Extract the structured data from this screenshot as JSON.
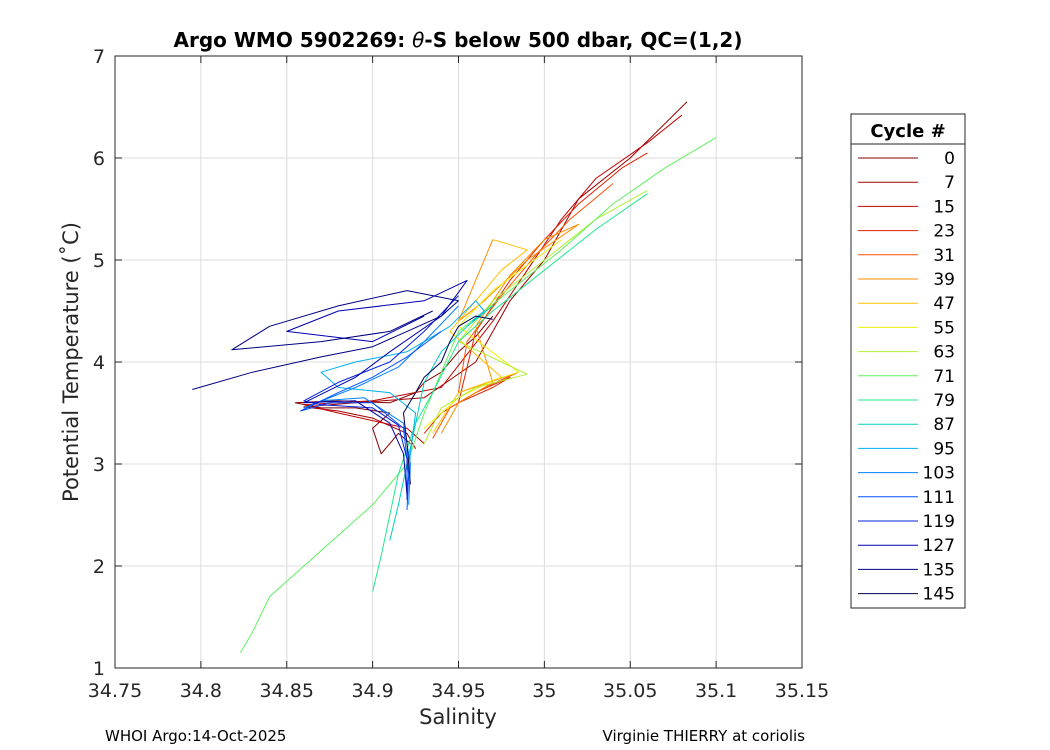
{
  "chart_data": {
    "type": "line",
    "title_prefix": "Argo WMO 5902269: ",
    "title_symbol": "θ",
    "title_suffix": "-S below 500 dbar,  QC=(1,2)",
    "xlabel": "Salinity",
    "ylabel": "Potential Temperature (˚C)",
    "xlim": [
      34.75,
      35.15
    ],
    "ylim": [
      1,
      7
    ],
    "xticks": [
      34.75,
      34.8,
      34.85,
      34.9,
      34.95,
      35,
      35.05,
      35.1,
      35.15
    ],
    "xtick_labels": [
      "34.75",
      "34.8",
      "34.85",
      "34.9",
      "34.95",
      "35",
      "35.05",
      "35.1",
      "35.15"
    ],
    "yticks": [
      1,
      2,
      3,
      4,
      5,
      6,
      7
    ],
    "ytick_labels": [
      "1",
      "2",
      "3",
      "4",
      "5",
      "6",
      "7"
    ],
    "grid": true,
    "legend": {
      "title": "Cycle #",
      "placement": "outside-right",
      "entries": [
        {
          "label": "0",
          "color": "#800000"
        },
        {
          "label": "7",
          "color": "#a00000"
        },
        {
          "label": "15",
          "color": "#c00000"
        },
        {
          "label": "23",
          "color": "#e02000"
        },
        {
          "label": "31",
          "color": "#ff5000"
        },
        {
          "label": "39",
          "color": "#ff8c00"
        },
        {
          "label": "47",
          "color": "#ffc000"
        },
        {
          "label": "55",
          "color": "#f0f000"
        },
        {
          "label": "63",
          "color": "#b0f030"
        },
        {
          "label": "71",
          "color": "#60f060"
        },
        {
          "label": "79",
          "color": "#20e890"
        },
        {
          "label": "87",
          "color": "#00d0c0"
        },
        {
          "label": "95",
          "color": "#00b0f0"
        },
        {
          "label": "103",
          "color": "#0080ff"
        },
        {
          "label": "111",
          "color": "#0050ff"
        },
        {
          "label": "119",
          "color": "#0020e0"
        },
        {
          "label": "127",
          "color": "#0000b0"
        },
        {
          "label": "135",
          "color": "#000080"
        },
        {
          "label": "145",
          "color": "#000050"
        }
      ]
    },
    "series": [
      {
        "color": "#800000",
        "points": [
          [
            34.922,
            3.2
          ],
          [
            34.915,
            3.3
          ],
          [
            34.905,
            3.1
          ],
          [
            34.9,
            3.35
          ],
          [
            34.91,
            3.5
          ],
          [
            34.89,
            3.55
          ],
          [
            34.87,
            3.55
          ],
          [
            34.855,
            3.6
          ],
          [
            34.88,
            3.62
          ],
          [
            34.91,
            3.6
          ],
          [
            34.925,
            3.7
          ],
          [
            34.93,
            3.8
          ],
          [
            34.94,
            3.9
          ],
          [
            34.95,
            4.1
          ],
          [
            34.96,
            4.25
          ],
          [
            34.97,
            4.45
          ]
        ]
      },
      {
        "color": "#a00000",
        "points": [
          [
            34.925,
            3.15
          ],
          [
            34.92,
            3.3
          ],
          [
            34.9,
            3.45
          ],
          [
            34.88,
            3.52
          ],
          [
            34.86,
            3.56
          ],
          [
            34.89,
            3.6
          ],
          [
            34.93,
            3.65
          ],
          [
            34.96,
            4.0
          ],
          [
            34.98,
            4.6
          ],
          [
            35.0,
            5.0
          ],
          [
            35.02,
            5.6
          ],
          [
            35.05,
            6.0
          ],
          [
            35.083,
            6.55
          ]
        ]
      },
      {
        "color": "#c00000",
        "points": [
          [
            34.93,
            3.2
          ],
          [
            34.92,
            3.35
          ],
          [
            34.88,
            3.5
          ],
          [
            34.86,
            3.58
          ],
          [
            34.9,
            3.62
          ],
          [
            34.94,
            3.75
          ],
          [
            34.97,
            4.4
          ],
          [
            34.99,
            4.9
          ],
          [
            35.01,
            5.4
          ],
          [
            35.03,
            5.8
          ],
          [
            35.06,
            6.15
          ],
          [
            35.08,
            6.42
          ]
        ]
      },
      {
        "color": "#e02000",
        "points": [
          [
            34.93,
            3.3
          ],
          [
            34.94,
            3.5
          ],
          [
            34.96,
            3.7
          ],
          [
            34.98,
            3.85
          ],
          [
            34.97,
            3.75
          ],
          [
            34.95,
            3.6
          ],
          [
            34.96,
            4.3
          ],
          [
            34.98,
            4.8
          ],
          [
            35.0,
            5.2
          ],
          [
            35.02,
            5.55
          ],
          [
            35.045,
            5.9
          ],
          [
            35.06,
            6.05
          ]
        ]
      },
      {
        "color": "#ff5000",
        "points": [
          [
            34.935,
            3.25
          ],
          [
            34.945,
            3.55
          ],
          [
            34.965,
            3.75
          ],
          [
            34.985,
            3.9
          ],
          [
            34.95,
            3.7
          ],
          [
            34.955,
            4.2
          ],
          [
            34.975,
            4.65
          ],
          [
            34.995,
            5.05
          ],
          [
            35.015,
            5.4
          ],
          [
            35.04,
            5.75
          ]
        ]
      },
      {
        "color": "#ff8c00",
        "points": [
          [
            34.94,
            3.3
          ],
          [
            34.95,
            3.6
          ],
          [
            34.97,
            3.8
          ],
          [
            34.96,
            4.35
          ],
          [
            34.98,
            4.85
          ],
          [
            35.0,
            5.2
          ],
          [
            35.02,
            5.35
          ],
          [
            34.99,
            5.0
          ],
          [
            34.965,
            4.6
          ],
          [
            34.95,
            4.4
          ],
          [
            34.97,
            5.2
          ]
        ]
      },
      {
        "color": "#ffc000",
        "points": [
          [
            34.935,
            3.3
          ],
          [
            34.95,
            3.7
          ],
          [
            34.975,
            3.85
          ],
          [
            34.945,
            4.3
          ],
          [
            34.96,
            4.6
          ],
          [
            34.975,
            4.9
          ],
          [
            34.99,
            5.1
          ],
          [
            34.97,
            5.2
          ]
        ]
      },
      {
        "color": "#f0f000",
        "points": [
          [
            34.93,
            3.35
          ],
          [
            34.95,
            3.65
          ],
          [
            34.97,
            3.82
          ],
          [
            34.985,
            3.9
          ],
          [
            34.95,
            4.35
          ],
          [
            34.97,
            4.7
          ],
          [
            34.99,
            4.95
          ],
          [
            35.01,
            5.2
          ]
        ]
      },
      {
        "color": "#b0f030",
        "points": [
          [
            34.93,
            3.2
          ],
          [
            34.94,
            3.55
          ],
          [
            34.96,
            3.75
          ],
          [
            34.99,
            3.88
          ],
          [
            34.95,
            4.2
          ],
          [
            34.97,
            4.6
          ],
          [
            35.0,
            5.0
          ],
          [
            35.03,
            5.4
          ],
          [
            35.06,
            5.68
          ]
        ]
      },
      {
        "color": "#60f060",
        "points": [
          [
            34.823,
            1.15
          ],
          [
            34.83,
            1.35
          ],
          [
            34.84,
            1.7
          ],
          [
            34.86,
            2.0
          ],
          [
            34.88,
            2.3
          ],
          [
            34.9,
            2.6
          ],
          [
            34.92,
            3.0
          ],
          [
            34.93,
            3.5
          ],
          [
            34.95,
            4.3
          ],
          [
            34.98,
            4.7
          ],
          [
            35.01,
            5.1
          ],
          [
            35.04,
            5.55
          ],
          [
            35.07,
            5.9
          ],
          [
            35.1,
            6.2
          ]
        ]
      },
      {
        "color": "#20e890",
        "points": [
          [
            34.9,
            1.75
          ],
          [
            34.905,
            2.1
          ],
          [
            34.91,
            2.5
          ],
          [
            34.915,
            2.9
          ],
          [
            34.925,
            3.4
          ],
          [
            34.935,
            3.7
          ],
          [
            34.95,
            4.2
          ],
          [
            34.97,
            4.5
          ],
          [
            35.0,
            4.9
          ],
          [
            35.03,
            5.3
          ],
          [
            35.06,
            5.65
          ]
        ]
      },
      {
        "color": "#00d0c0",
        "points": [
          [
            34.91,
            2.25
          ],
          [
            34.915,
            2.6
          ],
          [
            34.92,
            3.0
          ],
          [
            34.925,
            3.4
          ],
          [
            34.93,
            3.8
          ],
          [
            34.94,
            4.1
          ],
          [
            34.955,
            4.35
          ],
          [
            34.97,
            4.55
          ]
        ]
      },
      {
        "color": "#00b0f0",
        "points": [
          [
            34.92,
            2.7
          ],
          [
            34.922,
            3.1
          ],
          [
            34.925,
            3.5
          ],
          [
            34.91,
            3.7
          ],
          [
            34.88,
            3.75
          ],
          [
            34.87,
            3.9
          ],
          [
            34.89,
            4.0
          ],
          [
            34.92,
            4.1
          ],
          [
            34.945,
            4.35
          ],
          [
            34.96,
            4.6
          ],
          [
            34.965,
            4.5
          ],
          [
            34.958,
            4.4
          ]
        ]
      },
      {
        "color": "#0080ff",
        "points": [
          [
            34.921,
            2.6
          ],
          [
            34.922,
            3.0
          ],
          [
            34.918,
            3.4
          ],
          [
            34.895,
            3.65
          ],
          [
            34.87,
            3.62
          ],
          [
            34.86,
            3.55
          ],
          [
            34.89,
            3.75
          ],
          [
            34.915,
            3.95
          ],
          [
            34.93,
            4.2
          ],
          [
            34.95,
            4.55
          ]
        ]
      },
      {
        "color": "#0050ff",
        "points": [
          [
            34.92,
            2.55
          ],
          [
            34.921,
            2.9
          ],
          [
            34.918,
            3.35
          ],
          [
            34.9,
            3.6
          ],
          [
            34.875,
            3.6
          ],
          [
            34.858,
            3.52
          ],
          [
            34.88,
            3.7
          ],
          [
            34.9,
            3.85
          ],
          [
            34.92,
            4.05
          ],
          [
            34.94,
            4.3
          ]
        ]
      },
      {
        "color": "#0020e0",
        "points": [
          [
            34.92,
            2.65
          ],
          [
            34.92,
            3.05
          ],
          [
            34.915,
            3.38
          ],
          [
            34.9,
            3.55
          ],
          [
            34.87,
            3.58
          ],
          [
            34.86,
            3.62
          ],
          [
            34.88,
            3.8
          ],
          [
            34.91,
            4.0
          ],
          [
            34.93,
            4.3
          ],
          [
            34.95,
            4.65
          ]
        ]
      },
      {
        "color": "#0000b0",
        "points": [
          [
            34.92,
            2.7
          ],
          [
            34.918,
            3.1
          ],
          [
            34.91,
            3.4
          ],
          [
            34.89,
            3.62
          ],
          [
            34.86,
            3.6
          ],
          [
            34.89,
            3.85
          ],
          [
            34.91,
            4.1
          ],
          [
            34.94,
            4.45
          ],
          [
            34.955,
            4.8
          ],
          [
            34.93,
            4.6
          ],
          [
            34.88,
            4.5
          ],
          [
            34.85,
            4.3
          ],
          [
            34.9,
            4.2
          ],
          [
            34.93,
            4.45
          ]
        ]
      },
      {
        "color": "#000080",
        "points": [
          [
            34.795,
            3.73
          ],
          [
            34.83,
            3.9
          ],
          [
            34.87,
            4.05
          ],
          [
            34.9,
            4.15
          ],
          [
            34.92,
            4.3
          ],
          [
            34.94,
            4.45
          ],
          [
            34.95,
            4.6
          ],
          [
            34.92,
            4.7
          ],
          [
            34.88,
            4.55
          ],
          [
            34.84,
            4.35
          ],
          [
            34.818,
            4.12
          ],
          [
            34.87,
            4.2
          ],
          [
            34.91,
            4.3
          ],
          [
            34.935,
            4.5
          ]
        ]
      },
      {
        "color": "#000050",
        "points": [
          [
            34.922,
            2.8
          ],
          [
            34.92,
            3.2
          ],
          [
            34.918,
            3.5
          ],
          [
            34.925,
            3.7
          ],
          [
            34.93,
            3.85
          ],
          [
            34.94,
            4.0
          ],
          [
            34.945,
            4.2
          ],
          [
            34.95,
            4.35
          ],
          [
            34.96,
            4.45
          ],
          [
            34.97,
            4.42
          ]
        ]
      }
    ]
  },
  "footer": {
    "left": "WHOI Argo:14-Oct-2025",
    "right": "Virginie THIERRY at coriolis"
  }
}
